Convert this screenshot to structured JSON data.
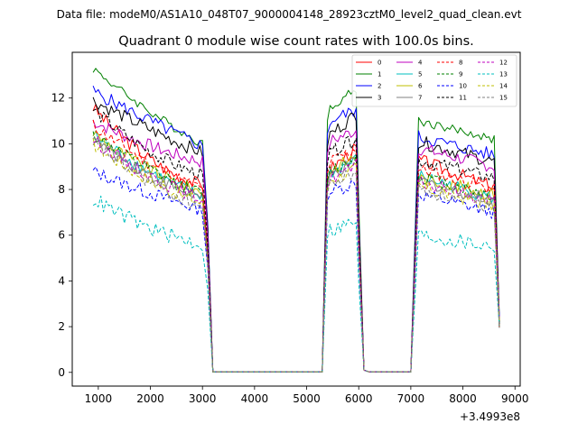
{
  "suptitle": "Data file: modeM0/AS1A10_048T07_9000004148_28923cztM0_level2_quad_clean.evt",
  "chart_data": {
    "type": "line",
    "title": "Quadrant 0 module wise count rates with 100.0s bins.",
    "xlabel": "",
    "ylabel": "",
    "x_offset_label": "+3.4993e8",
    "xlim": [
      500,
      9100
    ],
    "ylim": [
      -0.6,
      14.0
    ],
    "x_ticks": [
      1000,
      2000,
      3000,
      4000,
      5000,
      6000,
      7000,
      8000,
      9000
    ],
    "y_ticks": [
      0,
      2,
      4,
      6,
      8,
      10,
      12
    ],
    "legend_placement": "top-right",
    "legend_columns": 4,
    "good_time_intervals": [
      [
        900,
        3000
      ],
      [
        5400,
        5900
      ],
      [
        7200,
        8600
      ]
    ],
    "series": [
      {
        "name": "0",
        "color": "#ff0000",
        "dash": "solid",
        "start": 11.6,
        "level": 8.9,
        "end": 8.2,
        "noise": 0.3,
        "seg2": [
          8.9,
          9.8
        ],
        "seg3": [
          9.3,
          8.1
        ]
      },
      {
        "name": "1",
        "color": "#008000",
        "dash": "solid",
        "start": 13.3,
        "level": 11.3,
        "end": 10.0,
        "noise": 0.2,
        "seg2": [
          11.6,
          12.4
        ],
        "seg3": [
          11.0,
          10.2
        ]
      },
      {
        "name": "2",
        "color": "#0000ff",
        "dash": "solid",
        "start": 12.3,
        "level": 11.0,
        "end": 9.9,
        "noise": 0.3,
        "seg2": [
          11.0,
          11.5
        ],
        "seg3": [
          10.3,
          9.5
        ]
      },
      {
        "name": "3",
        "color": "#000000",
        "dash": "solid",
        "start": 11.9,
        "level": 10.6,
        "end": 9.6,
        "noise": 0.3,
        "seg2": [
          10.4,
          11.3
        ],
        "seg3": [
          10.1,
          9.2
        ]
      },
      {
        "name": "4",
        "color": "#bf00bf",
        "dash": "solid",
        "start": 11.0,
        "level": 9.8,
        "end": 9.2,
        "noise": 0.3,
        "seg2": [
          10.1,
          10.6
        ],
        "seg3": [
          9.8,
          9.0
        ]
      },
      {
        "name": "5",
        "color": "#00bfbf",
        "dash": "solid",
        "start": 10.4,
        "level": 8.6,
        "end": 7.7,
        "noise": 0.3,
        "seg2": [
          8.7,
          9.3
        ],
        "seg3": [
          8.6,
          7.6
        ]
      },
      {
        "name": "6",
        "color": "#bfbf00",
        "dash": "solid",
        "start": 10.5,
        "level": 8.6,
        "end": 7.9,
        "noise": 0.3,
        "seg2": [
          8.8,
          9.5
        ],
        "seg3": [
          8.5,
          7.8
        ]
      },
      {
        "name": "7",
        "color": "#808080",
        "dash": "solid",
        "start": 10.2,
        "level": 8.5,
        "end": 7.6,
        "noise": 0.3,
        "seg2": [
          8.6,
          9.2
        ],
        "seg3": [
          8.4,
          7.5
        ]
      },
      {
        "name": "8",
        "color": "#ff0000",
        "dash": "dashed",
        "start": 10.8,
        "level": 9.0,
        "end": 8.0,
        "noise": 0.3,
        "seg2": [
          9.2,
          9.8
        ],
        "seg3": [
          8.9,
          8.0
        ]
      },
      {
        "name": "9",
        "color": "#008000",
        "dash": "dashed",
        "start": 10.4,
        "level": 8.7,
        "end": 7.8,
        "noise": 0.3,
        "seg2": [
          8.8,
          9.4
        ],
        "seg3": [
          8.6,
          7.7
        ]
      },
      {
        "name": "10",
        "color": "#0000ff",
        "dash": "dashed",
        "start": 8.8,
        "level": 7.8,
        "end": 7.1,
        "noise": 0.3,
        "seg2": [
          7.9,
          8.3
        ],
        "seg3": [
          7.8,
          7.0
        ]
      },
      {
        "name": "11",
        "color": "#000000",
        "dash": "dashed",
        "start": 11.5,
        "level": 9.4,
        "end": 8.6,
        "noise": 0.3,
        "seg2": [
          9.6,
          10.2
        ],
        "seg3": [
          9.3,
          8.5
        ]
      },
      {
        "name": "12",
        "color": "#bf00bf",
        "dash": "dashed",
        "start": 10.2,
        "level": 8.4,
        "end": 7.6,
        "noise": 0.3,
        "seg2": [
          8.5,
          9.0
        ],
        "seg3": [
          8.3,
          7.5
        ]
      },
      {
        "name": "13",
        "color": "#00bfbf",
        "dash": "dashed",
        "start": 7.6,
        "level": 6.1,
        "end": 5.6,
        "noise": 0.35,
        "seg2": [
          6.2,
          6.6
        ],
        "seg3": [
          6.0,
          5.5
        ]
      },
      {
        "name": "14",
        "color": "#bfbf00",
        "dash": "dashed",
        "start": 10.0,
        "level": 8.2,
        "end": 7.4,
        "noise": 0.3,
        "seg2": [
          8.4,
          8.9
        ],
        "seg3": [
          8.1,
          7.3
        ]
      },
      {
        "name": "15",
        "color": "#808080",
        "dash": "dashed",
        "start": 10.1,
        "level": 8.1,
        "end": 7.2,
        "noise": 0.3,
        "seg2": [
          8.2,
          8.8
        ],
        "seg3": [
          8.0,
          7.2
        ]
      }
    ]
  }
}
